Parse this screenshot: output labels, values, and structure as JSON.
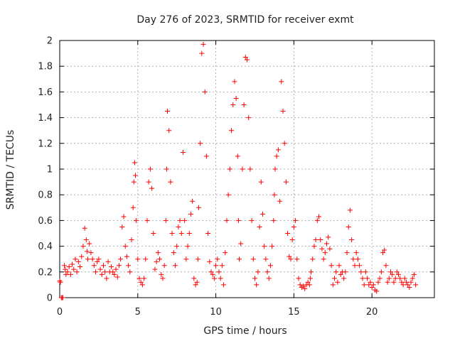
{
  "chart_data": {
    "type": "scatter",
    "title": "Day 276 of 2023, SRMTID for receiver exmt",
    "xlabel": "GPS time / hours",
    "ylabel": "SRMTID / TECUs",
    "xlim": [
      0,
      24
    ],
    "ylim": [
      0,
      2
    ],
    "x_ticks": [
      0,
      5,
      10,
      15,
      20
    ],
    "y_ticks": [
      0,
      0.2,
      0.4,
      0.6,
      0.8,
      1,
      1.2,
      1.4,
      1.6,
      1.8,
      2
    ],
    "x_tick_labels": [
      "0",
      "5",
      "10",
      "15",
      "20"
    ],
    "y_tick_labels": [
      "0",
      "0.2",
      "0.4",
      "0.6",
      "0.8",
      "1",
      "1.2",
      "1.4",
      "1.6",
      "1.8",
      "2"
    ],
    "grid": true,
    "marker": "+",
    "color": "#ff0000",
    "series": [
      {
        "name": "SRMTID",
        "x": [
          0.0,
          0.05,
          0.1,
          0.15,
          0.2,
          0.3,
          0.35,
          0.4,
          0.5,
          0.6,
          0.7,
          0.8,
          0.9,
          1.0,
          1.1,
          1.2,
          1.3,
          1.4,
          1.5,
          1.6,
          1.7,
          1.75,
          1.8,
          1.9,
          2.0,
          2.1,
          2.2,
          2.3,
          2.4,
          2.5,
          2.6,
          2.7,
          2.8,
          2.9,
          3.0,
          3.1,
          3.2,
          3.3,
          3.4,
          3.5,
          3.6,
          3.7,
          3.8,
          3.9,
          4.0,
          4.1,
          4.2,
          4.3,
          4.4,
          4.5,
          4.6,
          4.7,
          4.75,
          4.8,
          4.85,
          4.9,
          5.0,
          5.1,
          5.2,
          5.3,
          5.4,
          5.5,
          5.6,
          5.7,
          5.8,
          5.9,
          6.0,
          6.1,
          6.2,
          6.3,
          6.4,
          6.5,
          6.6,
          6.7,
          6.8,
          6.85,
          6.9,
          7.0,
          7.1,
          7.2,
          7.3,
          7.4,
          7.5,
          7.6,
          7.7,
          7.8,
          7.9,
          8.0,
          8.1,
          8.2,
          8.3,
          8.4,
          8.5,
          8.6,
          8.7,
          8.8,
          8.85,
          8.9,
          9.0,
          9.1,
          9.2,
          9.3,
          9.4,
          9.5,
          9.6,
          9.7,
          9.8,
          9.9,
          10.0,
          10.1,
          10.2,
          10.3,
          10.4,
          10.5,
          10.6,
          10.7,
          10.8,
          10.9,
          11.0,
          11.1,
          11.2,
          11.3,
          11.4,
          11.45,
          11.5,
          11.6,
          11.7,
          11.8,
          11.9,
          12.0,
          12.1,
          12.2,
          12.3,
          12.4,
          12.5,
          12.6,
          12.7,
          12.8,
          12.9,
          13.0,
          13.1,
          13.2,
          13.3,
          13.4,
          13.5,
          13.6,
          13.7,
          13.75,
          13.8,
          13.9,
          14.0,
          14.1,
          14.2,
          14.3,
          14.4,
          14.5,
          14.6,
          14.7,
          14.8,
          14.9,
          15.0,
          15.1,
          15.2,
          15.3,
          15.4,
          15.5,
          15.6,
          15.7,
          15.8,
          15.9,
          16.0,
          16.05,
          16.1,
          16.2,
          16.3,
          16.4,
          16.5,
          16.6,
          16.7,
          16.8,
          16.9,
          17.0,
          17.1,
          17.2,
          17.3,
          17.4,
          17.5,
          17.6,
          17.7,
          17.8,
          17.9,
          18.0,
          18.1,
          18.2,
          18.3,
          18.4,
          18.5,
          18.6,
          18.7,
          18.8,
          18.9,
          19.0,
          19.1,
          19.2,
          19.3,
          19.4,
          19.5,
          19.6,
          19.7,
          19.8,
          19.9,
          20.0,
          20.1,
          20.2,
          20.3,
          20.4,
          20.5,
          20.6,
          20.7,
          20.8,
          20.9,
          21.0,
          21.1,
          21.2,
          21.3,
          21.4,
          21.5,
          21.6,
          21.7,
          21.8,
          21.9,
          22.0,
          22.1,
          22.2,
          22.3,
          22.4,
          22.5,
          22.6,
          22.7,
          22.8
        ],
        "y": [
          0.13,
          0.12,
          0.0,
          0.0,
          0.0,
          0.25,
          0.22,
          0.18,
          0.2,
          0.24,
          0.18,
          0.26,
          0.22,
          0.3,
          0.2,
          0.28,
          0.24,
          0.32,
          0.4,
          0.54,
          0.45,
          0.36,
          0.3,
          0.42,
          0.35,
          0.3,
          0.25,
          0.2,
          0.28,
          0.3,
          0.22,
          0.18,
          0.25,
          0.2,
          0.15,
          0.28,
          0.2,
          0.24,
          0.2,
          0.18,
          0.22,
          0.16,
          0.25,
          0.3,
          0.55,
          0.63,
          0.4,
          0.32,
          0.25,
          0.2,
          0.45,
          0.7,
          0.9,
          1.05,
          0.95,
          0.6,
          0.3,
          0.15,
          0.12,
          0.1,
          0.15,
          0.3,
          0.6,
          0.9,
          1.0,
          0.85,
          0.5,
          0.22,
          0.28,
          0.35,
          0.3,
          0.18,
          0.15,
          0.25,
          0.6,
          1.0,
          1.45,
          1.3,
          0.9,
          0.5,
          0.35,
          0.25,
          0.4,
          0.55,
          0.6,
          0.5,
          1.13,
          0.6,
          0.3,
          0.4,
          0.5,
          0.65,
          0.75,
          0.15,
          0.1,
          0.12,
          0.3,
          0.7,
          1.2,
          1.9,
          1.97,
          1.6,
          1.1,
          0.5,
          0.28,
          0.2,
          0.18,
          0.15,
          0.25,
          0.3,
          0.2,
          0.15,
          0.25,
          0.1,
          0.35,
          0.6,
          0.8,
          1.0,
          1.3,
          1.5,
          1.68,
          1.55,
          1.1,
          0.6,
          0.3,
          0.42,
          1.0,
          1.5,
          1.87,
          1.85,
          1.4,
          1.0,
          0.6,
          0.3,
          0.15,
          0.1,
          0.2,
          0.55,
          0.9,
          0.65,
          0.4,
          0.3,
          0.2,
          0.15,
          0.25,
          0.4,
          0.6,
          0.8,
          1.0,
          1.1,
          1.15,
          0.75,
          1.68,
          1.45,
          1.2,
          0.9,
          0.5,
          0.32,
          0.3,
          0.45,
          0.55,
          0.6,
          0.3,
          0.15,
          0.1,
          0.08,
          0.09,
          0.07,
          0.1,
          0.12,
          0.1,
          0.15,
          0.2,
          0.3,
          0.4,
          0.45,
          0.6,
          0.63,
          0.45,
          0.38,
          0.3,
          0.35,
          0.42,
          0.47,
          0.38,
          0.25,
          0.1,
          0.15,
          0.2,
          0.12,
          0.25,
          0.18,
          0.2,
          0.15,
          0.2,
          0.35,
          0.55,
          0.68,
          0.45,
          0.3,
          0.25,
          0.35,
          0.3,
          0.25,
          0.2,
          0.15,
          0.1,
          0.2,
          0.15,
          0.1,
          0.12,
          0.08,
          0.1,
          0.06,
          0.05,
          0.12,
          0.15,
          0.2,
          0.35,
          0.37,
          0.25,
          0.12,
          0.15,
          0.2,
          0.18,
          0.12,
          0.15,
          0.2,
          0.18,
          0.15,
          0.12,
          0.1,
          0.15,
          0.12,
          0.1,
          0.08,
          0.12,
          0.15,
          0.18,
          0.1
        ]
      }
    ]
  }
}
